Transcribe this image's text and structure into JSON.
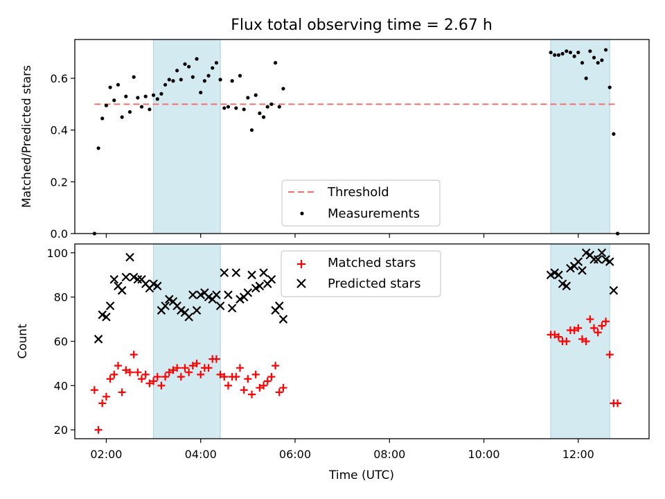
{
  "chart_data": [
    {
      "type": "scatter",
      "title": "Flux total observing time = 2.67 h",
      "xlabel": "",
      "ylabel": "Matched/Predicted stars",
      "xlim": [
        "01:20",
        "13:30"
      ],
      "ylim": [
        0,
        0.75
      ],
      "yticks": [
        0.0,
        0.2,
        0.4,
        0.6
      ],
      "ytick_labels": [
        "0.0",
        "0.2",
        "0.4",
        "0.6"
      ],
      "shaded_intervals": [
        [
          "03:00",
          "04:25"
        ],
        [
          "11:25",
          "12:40"
        ]
      ],
      "shade_color": "#d4eaf1",
      "threshold": {
        "name": "Threshold",
        "y": 0.5,
        "x_start": "01:45",
        "x_end": "12:50",
        "color": "#f07070",
        "style": "dashed"
      },
      "legend": {
        "position": "lower-center",
        "entries": [
          "Threshold",
          "Measurements"
        ]
      },
      "series": [
        {
          "name": "Measurements",
          "color": "#000000",
          "marker": "dot",
          "points": [
            [
              "01:45",
              0.0
            ],
            [
              "01:50",
              0.33
            ],
            [
              "01:55",
              0.445
            ],
            [
              "02:00",
              0.495
            ],
            [
              "02:05",
              0.565
            ],
            [
              "02:10",
              0.515
            ],
            [
              "02:15",
              0.575
            ],
            [
              "02:20",
              0.45
            ],
            [
              "02:25",
              0.53
            ],
            [
              "02:30",
              0.47
            ],
            [
              "02:35",
              0.605
            ],
            [
              "02:40",
              0.525
            ],
            [
              "02:45",
              0.49
            ],
            [
              "02:50",
              0.53
            ],
            [
              "02:55",
              0.48
            ],
            [
              "03:00",
              0.535
            ],
            [
              "03:05",
              0.52
            ],
            [
              "03:10",
              0.54
            ],
            [
              "03:15",
              0.575
            ],
            [
              "03:20",
              0.595
            ],
            [
              "03:25",
              0.59
            ],
            [
              "03:30",
              0.63
            ],
            [
              "03:35",
              0.595
            ],
            [
              "03:40",
              0.655
            ],
            [
              "03:45",
              0.645
            ],
            [
              "03:50",
              0.605
            ],
            [
              "03:55",
              0.675
            ],
            [
              "04:00",
              0.545
            ],
            [
              "04:05",
              0.59
            ],
            [
              "04:10",
              0.61
            ],
            [
              "04:15",
              0.64
            ],
            [
              "04:20",
              0.66
            ],
            [
              "04:25",
              0.595
            ],
            [
              "04:30",
              0.485
            ],
            [
              "04:35",
              0.49
            ],
            [
              "04:40",
              0.59
            ],
            [
              "04:45",
              0.485
            ],
            [
              "04:50",
              0.61
            ],
            [
              "04:55",
              0.48
            ],
            [
              "05:00",
              0.525
            ],
            [
              "05:05",
              0.4
            ],
            [
              "05:10",
              0.535
            ],
            [
              "05:15",
              0.465
            ],
            [
              "05:20",
              0.45
            ],
            [
              "05:25",
              0.49
            ],
            [
              "05:30",
              0.5
            ],
            [
              "05:35",
              0.66
            ],
            [
              "05:40",
              0.49
            ],
            [
              "05:45",
              0.56
            ],
            [
              "11:25",
              0.7
            ],
            [
              "11:30",
              0.69
            ],
            [
              "11:35",
              0.69
            ],
            [
              "11:40",
              0.695
            ],
            [
              "11:45",
              0.705
            ],
            [
              "11:50",
              0.7
            ],
            [
              "11:55",
              0.685
            ],
            [
              "12:00",
              0.7
            ],
            [
              "12:05",
              0.66
            ],
            [
              "12:10",
              0.6
            ],
            [
              "12:15",
              0.705
            ],
            [
              "12:20",
              0.68
            ],
            [
              "12:25",
              0.66
            ],
            [
              "12:30",
              0.67
            ],
            [
              "12:35",
              0.71
            ],
            [
              "12:40",
              0.565
            ],
            [
              "12:45",
              0.385
            ],
            [
              "12:50",
              0.0
            ]
          ]
        }
      ]
    },
    {
      "type": "scatter",
      "title": "",
      "xlabel": "Time (UTC)",
      "ylabel": "Count",
      "xlim": [
        "01:20",
        "13:30"
      ],
      "ylim": [
        16,
        104
      ],
      "yticks": [
        20,
        40,
        60,
        80,
        100
      ],
      "ytick_labels": [
        "20",
        "40",
        "60",
        "80",
        "100"
      ],
      "xticks": [
        "02:00",
        "04:00",
        "06:00",
        "08:00",
        "10:00",
        "12:00"
      ],
      "xtick_labels": [
        "02:00",
        "04:00",
        "06:00",
        "08:00",
        "10:00",
        "12:00"
      ],
      "shaded_intervals": [
        [
          "03:00",
          "04:25"
        ],
        [
          "11:25",
          "12:40"
        ]
      ],
      "shade_color": "#d4eaf1",
      "legend": {
        "position": "upper-center",
        "entries": [
          "Matched stars",
          "Predicted stars"
        ]
      },
      "series": [
        {
          "name": "Matched stars",
          "color": "#ff0000",
          "marker": "plus",
          "points": [
            [
              "01:45",
              38
            ],
            [
              "01:50",
              20
            ],
            [
              "01:55",
              32
            ],
            [
              "02:00",
              35
            ],
            [
              "02:05",
              43
            ],
            [
              "02:10",
              45
            ],
            [
              "02:15",
              49
            ],
            [
              "02:20",
              37
            ],
            [
              "02:25",
              47
            ],
            [
              "02:30",
              46
            ],
            [
              "02:35",
              54
            ],
            [
              "02:40",
              46
            ],
            [
              "02:45",
              43
            ],
            [
              "02:50",
              45
            ],
            [
              "02:55",
              41
            ],
            [
              "03:00",
              42
            ],
            [
              "03:05",
              44
            ],
            [
              "03:10",
              40
            ],
            [
              "03:15",
              44
            ],
            [
              "03:20",
              46
            ],
            [
              "03:25",
              47
            ],
            [
              "03:30",
              48
            ],
            [
              "03:35",
              44
            ],
            [
              "03:40",
              48
            ],
            [
              "03:45",
              46
            ],
            [
              "03:50",
              49
            ],
            [
              "03:55",
              50
            ],
            [
              "04:00",
              45
            ],
            [
              "04:05",
              48
            ],
            [
              "04:10",
              48
            ],
            [
              "04:15",
              52
            ],
            [
              "04:20",
              52
            ],
            [
              "04:25",
              45
            ],
            [
              "04:30",
              44
            ],
            [
              "04:35",
              40
            ],
            [
              "04:40",
              44
            ],
            [
              "04:45",
              44
            ],
            [
              "04:50",
              48
            ],
            [
              "04:55",
              38
            ],
            [
              "05:00",
              43
            ],
            [
              "05:05",
              36
            ],
            [
              "05:10",
              45
            ],
            [
              "05:15",
              39
            ],
            [
              "05:20",
              40
            ],
            [
              "05:25",
              42
            ],
            [
              "05:30",
              44
            ],
            [
              "05:35",
              49
            ],
            [
              "05:40",
              37
            ],
            [
              "05:45",
              39
            ],
            [
              "11:25",
              63
            ],
            [
              "11:30",
              63
            ],
            [
              "11:35",
              62
            ],
            [
              "11:40",
              60
            ],
            [
              "11:45",
              60
            ],
            [
              "11:50",
              65
            ],
            [
              "11:55",
              65
            ],
            [
              "12:00",
              66
            ],
            [
              "12:05",
              61
            ],
            [
              "12:10",
              60
            ],
            [
              "12:15",
              70
            ],
            [
              "12:20",
              66
            ],
            [
              "12:25",
              64
            ],
            [
              "12:30",
              67
            ],
            [
              "12:35",
              69
            ],
            [
              "12:40",
              54
            ],
            [
              "12:45",
              32
            ],
            [
              "12:50",
              32
            ]
          ]
        },
        {
          "name": "Predicted stars",
          "color": "#000000",
          "marker": "x",
          "points": [
            [
              "01:50",
              61
            ],
            [
              "01:55",
              72
            ],
            [
              "02:00",
              71
            ],
            [
              "02:05",
              76
            ],
            [
              "02:10",
              88
            ],
            [
              "02:15",
              85
            ],
            [
              "02:20",
              83
            ],
            [
              "02:25",
              89
            ],
            [
              "02:30",
              98
            ],
            [
              "02:35",
              89
            ],
            [
              "02:40",
              88
            ],
            [
              "02:45",
              88
            ],
            [
              "02:50",
              86
            ],
            [
              "02:55",
              84
            ],
            [
              "03:00",
              86
            ],
            [
              "03:05",
              85
            ],
            [
              "03:10",
              74
            ],
            [
              "03:15",
              76
            ],
            [
              "03:20",
              79
            ],
            [
              "03:25",
              78
            ],
            [
              "03:30",
              76
            ],
            [
              "03:35",
              74
            ],
            [
              "03:40",
              73
            ],
            [
              "03:45",
              71
            ],
            [
              "03:50",
              81
            ],
            [
              "03:55",
              74
            ],
            [
              "04:00",
              81
            ],
            [
              "04:05",
              82
            ],
            [
              "04:10",
              80
            ],
            [
              "04:15",
              79
            ],
            [
              "04:20",
              81
            ],
            [
              "04:25",
              76
            ],
            [
              "04:30",
              91
            ],
            [
              "04:35",
              81
            ],
            [
              "04:40",
              75
            ],
            [
              "04:45",
              91
            ],
            [
              "04:50",
              79
            ],
            [
              "04:55",
              80
            ],
            [
              "05:00",
              82
            ],
            [
              "05:05",
              90
            ],
            [
              "05:10",
              84
            ],
            [
              "05:15",
              85
            ],
            [
              "05:20",
              91
            ],
            [
              "05:25",
              86
            ],
            [
              "05:30",
              88
            ],
            [
              "05:35",
              74
            ],
            [
              "05:40",
              76
            ],
            [
              "05:45",
              70
            ],
            [
              "11:25",
              90
            ],
            [
              "11:30",
              91
            ],
            [
              "11:35",
              90
            ],
            [
              "11:40",
              86
            ],
            [
              "11:45",
              85
            ],
            [
              "11:50",
              93
            ],
            [
              "11:55",
              94
            ],
            [
              "12:00",
              96
            ],
            [
              "12:05",
              92
            ],
            [
              "12:10",
              100
            ],
            [
              "12:15",
              99
            ],
            [
              "12:20",
              97
            ],
            [
              "12:25",
              97
            ],
            [
              "12:30",
              100
            ],
            [
              "12:35",
              97
            ],
            [
              "12:40",
              96
            ],
            [
              "12:45",
              83
            ]
          ]
        }
      ]
    }
  ]
}
